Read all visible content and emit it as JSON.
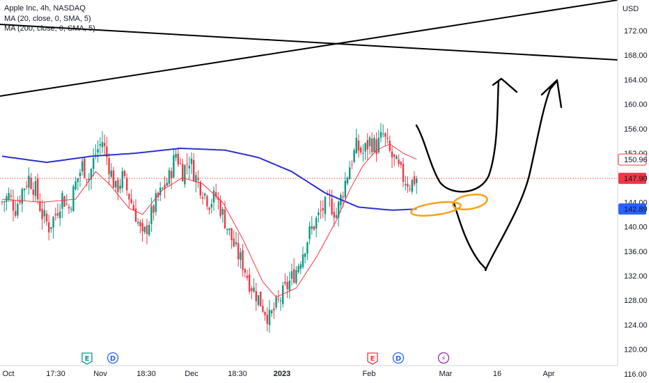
{
  "header": {
    "title": "Apple Inc, 4h, NASDAQ",
    "indicators": [
      "MA (20, close, 0, SMA, 5)",
      "MA (200, close, 0, SMA, 5)"
    ]
  },
  "chart_data": {
    "type": "candlestick",
    "currency_label": "USD",
    "y_ticks": [
      116,
      120,
      124,
      128,
      132,
      136,
      140,
      144,
      148,
      152,
      156,
      160,
      164,
      168,
      172
    ],
    "ylim": [
      114.5,
      177
    ],
    "x_ticks": [
      "Oct",
      "17:30",
      "Nov",
      "18:30",
      "Dec",
      "18:30",
      "2023",
      "Feb",
      "Mar",
      "16",
      "Apr"
    ],
    "price_badges": [
      {
        "value": "150.96",
        "color": "#f23645"
      },
      {
        "value": "147.90",
        "color": "#f23645"
      },
      {
        "value": "142.89",
        "color": "#2962ff"
      }
    ],
    "current_price": 147.9,
    "colors": {
      "up": "#089981",
      "down": "#f23645",
      "ma20": "#f23645",
      "ma200": "#2b2fd0",
      "annotation_orange": "#f7a21b"
    },
    "event_markers": [
      {
        "label": "E",
        "color": "#089981"
      },
      {
        "label": "D",
        "color": "#2962ff"
      },
      {
        "label": "E",
        "color": "#f23645"
      },
      {
        "label": "D",
        "color": "#2962ff"
      },
      {
        "label": "⚡",
        "color": "#9c27b0"
      }
    ],
    "close_path": [
      [
        0,
        144
      ],
      [
        3,
        145
      ],
      [
        6,
        143
      ],
      [
        9,
        146
      ],
      [
        12,
        148
      ],
      [
        15,
        146
      ],
      [
        18,
        142
      ],
      [
        21,
        140
      ],
      [
        24,
        142
      ],
      [
        27,
        145
      ],
      [
        30,
        143
      ],
      [
        33,
        147
      ],
      [
        36,
        150
      ],
      [
        39,
        148
      ],
      [
        42,
        152
      ],
      [
        45,
        154
      ],
      [
        48,
        150
      ],
      [
        51,
        146
      ],
      [
        54,
        148
      ],
      [
        57,
        145
      ],
      [
        60,
        142
      ],
      [
        63,
        138
      ],
      [
        66,
        141
      ],
      [
        69,
        144
      ],
      [
        72,
        146
      ],
      [
        75,
        148
      ],
      [
        78,
        152
      ],
      [
        81,
        149
      ],
      [
        84,
        151
      ],
      [
        87,
        148
      ],
      [
        90,
        146
      ],
      [
        93,
        144
      ],
      [
        96,
        145
      ],
      [
        99,
        142
      ],
      [
        102,
        139
      ],
      [
        105,
        136
      ],
      [
        108,
        134
      ],
      [
        111,
        131
      ],
      [
        114,
        129
      ],
      [
        117,
        127
      ],
      [
        120,
        125
      ],
      [
        123,
        127
      ],
      [
        126,
        129
      ],
      [
        129,
        131
      ],
      [
        132,
        133
      ],
      [
        135,
        136
      ],
      [
        138,
        139
      ],
      [
        141,
        141
      ],
      [
        144,
        143
      ],
      [
        147,
        144
      ],
      [
        150,
        142
      ],
      [
        153,
        146
      ],
      [
        156,
        150
      ],
      [
        159,
        153
      ],
      [
        162,
        152
      ],
      [
        165,
        154
      ],
      [
        168,
        153
      ],
      [
        171,
        155
      ],
      [
        174,
        152
      ],
      [
        177,
        150
      ],
      [
        180,
        148
      ],
      [
        183,
        147
      ],
      [
        186,
        147.9
      ]
    ],
    "ma20_path": [
      [
        0,
        144.5
      ],
      [
        18,
        144
      ],
      [
        33,
        144.5
      ],
      [
        42,
        149
      ],
      [
        48,
        147
      ],
      [
        57,
        143
      ],
      [
        63,
        142
      ],
      [
        72,
        146
      ],
      [
        81,
        148
      ],
      [
        90,
        147
      ],
      [
        99,
        144
      ],
      [
        108,
        138
      ],
      [
        117,
        131
      ],
      [
        123,
        128.5
      ],
      [
        132,
        130
      ],
      [
        141,
        135
      ],
      [
        150,
        141
      ],
      [
        156,
        146
      ],
      [
        162,
        150
      ],
      [
        168,
        152.5
      ],
      [
        174,
        153.5
      ],
      [
        180,
        152
      ],
      [
        186,
        151
      ]
    ],
    "ma200_path": [
      [
        0,
        151.5
      ],
      [
        20,
        150.5
      ],
      [
        40,
        151.5
      ],
      [
        60,
        152
      ],
      [
        80,
        152.8
      ],
      [
        100,
        152.5
      ],
      [
        115,
        151.3
      ],
      [
        130,
        149
      ],
      [
        145,
        145.5
      ],
      [
        160,
        143.2
      ],
      [
        175,
        142.7
      ],
      [
        186,
        142.89
      ]
    ]
  }
}
